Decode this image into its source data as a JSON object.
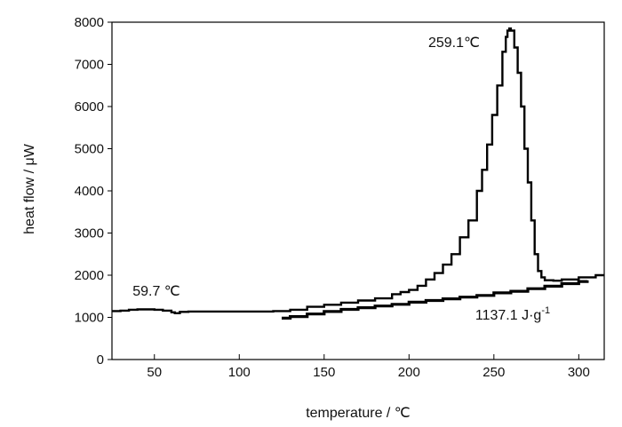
{
  "chart_data": {
    "type": "line",
    "title": "",
    "xlabel": "temperature / ℃",
    "ylabel": "heat flow / μW",
    "xlim": [
      25,
      315
    ],
    "ylim": [
      0,
      8000
    ],
    "x_ticks": [
      50,
      100,
      150,
      200,
      250,
      300
    ],
    "y_ticks": [
      0,
      1000,
      2000,
      3000,
      4000,
      5000,
      6000,
      7000,
      8000
    ],
    "grid": false,
    "legend": "none",
    "annotations": [
      {
        "text": "259.1℃",
        "x": 259.1,
        "y": 7800
      },
      {
        "text": "59.7 ℃",
        "x": 59.7,
        "y": 1200
      },
      {
        "text": "1137.1 J·g",
        "superscript": "-1",
        "x": 270,
        "y": 1100
      }
    ],
    "series": [
      {
        "color": "#000000",
        "x": [
          25,
          30,
          35,
          40,
          45,
          50,
          55,
          60,
          62,
          65,
          70,
          80,
          90,
          100,
          110,
          120,
          130,
          140,
          150,
          160,
          170,
          180,
          190,
          195,
          200,
          205,
          210,
          215,
          220,
          225,
          230,
          235,
          240,
          243,
          246,
          249,
          252,
          255,
          257,
          258,
          259.1,
          260,
          262,
          264,
          266,
          268,
          270,
          272,
          274,
          276,
          278,
          280,
          285,
          290,
          300,
          310,
          315
        ],
        "y": [
          1150,
          1160,
          1180,
          1190,
          1190,
          1180,
          1160,
          1120,
          1100,
          1130,
          1140,
          1140,
          1140,
          1140,
          1140,
          1150,
          1180,
          1250,
          1300,
          1350,
          1400,
          1450,
          1550,
          1600,
          1650,
          1750,
          1900,
          2050,
          2250,
          2500,
          2900,
          3300,
          4000,
          4500,
          5100,
          5800,
          6500,
          7300,
          7650,
          7800,
          7850,
          7800,
          7400,
          6800,
          6000,
          5000,
          4200,
          3300,
          2500,
          2100,
          1950,
          1880,
          1870,
          1900,
          1950,
          2000,
          2000
        ]
      },
      {
        "color": "#000000",
        "x": [
          125,
          130,
          140,
          150,
          160,
          170,
          180,
          190,
          200,
          210,
          220,
          230,
          240,
          250,
          260,
          270,
          280,
          290,
          300,
          305
        ],
        "y": [
          980,
          1020,
          1080,
          1140,
          1190,
          1230,
          1270,
          1310,
          1360,
          1400,
          1440,
          1480,
          1520,
          1580,
          1620,
          1680,
          1740,
          1800,
          1850,
          1880
        ]
      }
    ]
  }
}
